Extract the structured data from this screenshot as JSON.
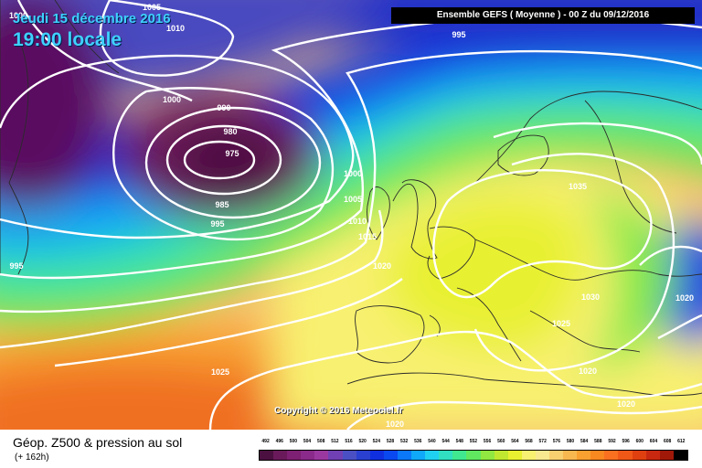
{
  "header": {
    "date": "Jeudi 15 décembre 2016",
    "local_time": "19:00 locale",
    "model_run": "Ensemble GEFS  ( Moyenne )  -  00 Z du 09/12/2016"
  },
  "map": {
    "copyright": "Copyright © 2016 Meteociel.fr",
    "isobar_labels": [
      "1005",
      "1010",
      "1000",
      "995",
      "990",
      "1000",
      "980",
      "975",
      "985",
      "995",
      "1000",
      "1005",
      "1010",
      "1015",
      "1020",
      "995",
      "1035",
      "1030",
      "1025",
      "1020",
      "1020",
      "1020",
      "1025",
      "1020"
    ]
  },
  "footer": {
    "title": "Géop. Z500 & pression au sol",
    "lead_time": "(+ 162h)"
  },
  "legend": {
    "values": [
      "492",
      "496",
      "500",
      "504",
      "508",
      "512",
      "516",
      "520",
      "524",
      "528",
      "532",
      "536",
      "540",
      "544",
      "548",
      "552",
      "556",
      "560",
      "564",
      "568",
      "572",
      "576",
      "580",
      "584",
      "588",
      "592",
      "596",
      "600",
      "604",
      "608",
      "612"
    ],
    "colors": [
      "#4b1040",
      "#6a1a5a",
      "#7e2073",
      "#8a2a8a",
      "#9b38a0",
      "#7040b4",
      "#4a50c4",
      "#2a40d0",
      "#1030e0",
      "#0a48f0",
      "#0a78f8",
      "#10a8f8",
      "#20d0f0",
      "#30e0c0",
      "#40e890",
      "#60e860",
      "#90e840",
      "#c0e830",
      "#e8f030",
      "#f8f070",
      "#f8e890",
      "#f8d070",
      "#f8b850",
      "#f8a030",
      "#f88820",
      "#f87020",
      "#f05818",
      "#e04010",
      "#c82810",
      "#a01808",
      "#000000"
    ]
  }
}
